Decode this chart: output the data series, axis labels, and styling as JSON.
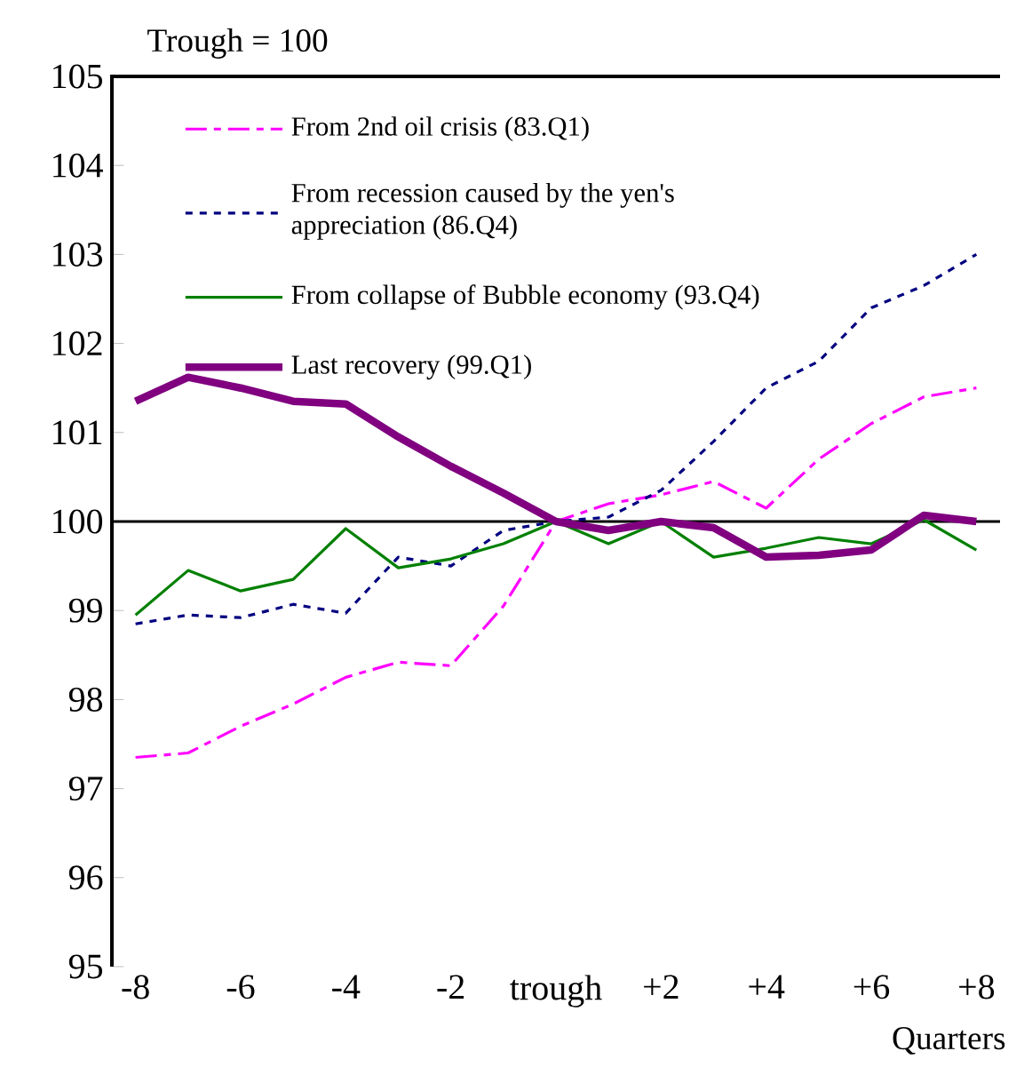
{
  "chart_data": {
    "type": "line",
    "title": "Trough = 100",
    "xlabel": "Quarters",
    "x": [
      -8,
      -7,
      -6,
      -5,
      -4,
      -3,
      -2,
      -1,
      0,
      1,
      2,
      3,
      4,
      5,
      6,
      7,
      8
    ],
    "series": [
      {
        "name": "From 2nd oil crisis (83.Q1)",
        "color": "#ff00ff",
        "line_style": "dashed",
        "values": [
          97.35,
          97.4,
          97.7,
          97.95,
          98.25,
          98.42,
          98.38,
          99.05,
          100,
          100.2,
          100.3,
          100.45,
          100.15,
          100.7,
          101.1,
          101.4,
          101.5
        ]
      },
      {
        "name": "From recession caused by the yen's appreciation (86.Q4)",
        "color": "#000080",
        "line_style": "dotted",
        "values": [
          98.85,
          98.95,
          98.92,
          99.07,
          98.97,
          99.6,
          99.5,
          99.9,
          100,
          100.05,
          100.35,
          100.9,
          101.5,
          101.8,
          102.4,
          102.65,
          103.0
        ]
      },
      {
        "name": "From collapse of Bubble economy (93.Q4)",
        "color": "#008000",
        "line_style": "solid",
        "values": [
          98.95,
          99.45,
          99.22,
          99.35,
          99.92,
          99.48,
          99.58,
          99.75,
          100,
          99.75,
          100,
          99.6,
          99.7,
          99.82,
          99.75,
          100.02,
          99.68
        ]
      },
      {
        "name": "Last recovery (99.Q1)",
        "color": "#800080",
        "line_style": "solid",
        "values": [
          101.35,
          101.62,
          101.5,
          101.35,
          101.32,
          100.95,
          100.62,
          100.32,
          100,
          99.9,
          100,
          99.93,
          99.6,
          99.62,
          99.68,
          100.07,
          100
        ]
      }
    ],
    "xlim": [
      -8.45,
      8.45
    ],
    "ylim": [
      95,
      105
    ],
    "xticks": [
      -8,
      -6,
      -4,
      -2,
      {
        "value": 0,
        "label": "trough"
      },
      {
        "value": 2,
        "label": "+2"
      },
      {
        "value": 4,
        "label": "+4"
      },
      {
        "value": 6,
        "label": "+6"
      },
      {
        "value": 8,
        "label": "+8"
      }
    ],
    "yticks": [
      95,
      96,
      97,
      98,
      99,
      100,
      101,
      102,
      103,
      104,
      105
    ],
    "ref_lines": [
      {
        "axis": "y",
        "value": 100,
        "color": "#000000"
      }
    ],
    "legend": "top left"
  }
}
